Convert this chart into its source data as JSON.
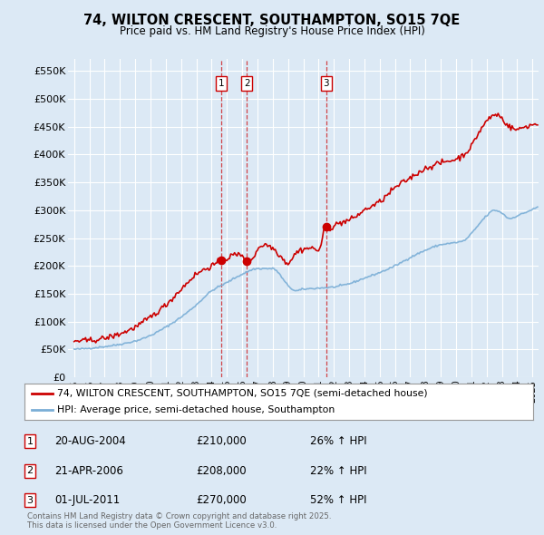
{
  "title": "74, WILTON CRESCENT, SOUTHAMPTON, SO15 7QE",
  "subtitle": "Price paid vs. HM Land Registry's House Price Index (HPI)",
  "bg_color": "#dce9f5",
  "plot_bg_color": "#dce9f5",
  "grid_color": "#ffffff",
  "red_line_color": "#cc0000",
  "blue_line_color": "#7aaed6",
  "ylabel_ticks": [
    "£0",
    "£50K",
    "£100K",
    "£150K",
    "£200K",
    "£250K",
    "£300K",
    "£350K",
    "£400K",
    "£450K",
    "£500K",
    "£550K"
  ],
  "ytick_values": [
    0,
    50000,
    100000,
    150000,
    200000,
    250000,
    300000,
    350000,
    400000,
    450000,
    500000,
    550000
  ],
  "transactions": [
    {
      "id": 1,
      "date": "20-AUG-2004",
      "year": 2004.63,
      "price": 210000,
      "hpi_pct": "26% ↑ HPI"
    },
    {
      "id": 2,
      "date": "21-APR-2006",
      "year": 2006.3,
      "price": 208000,
      "hpi_pct": "22% ↑ HPI"
    },
    {
      "id": 3,
      "date": "01-JUL-2011",
      "year": 2011.5,
      "price": 270000,
      "hpi_pct": "52% ↑ HPI"
    }
  ],
  "legend_red": "74, WILTON CRESCENT, SOUTHAMPTON, SO15 7QE (semi-detached house)",
  "legend_blue": "HPI: Average price, semi-detached house, Southampton",
  "footer": "Contains HM Land Registry data © Crown copyright and database right 2025.\nThis data is licensed under the Open Government Licence v3.0.",
  "xmin": 1994.6,
  "xmax": 2025.4,
  "ymin": 0,
  "ymax": 572000
}
